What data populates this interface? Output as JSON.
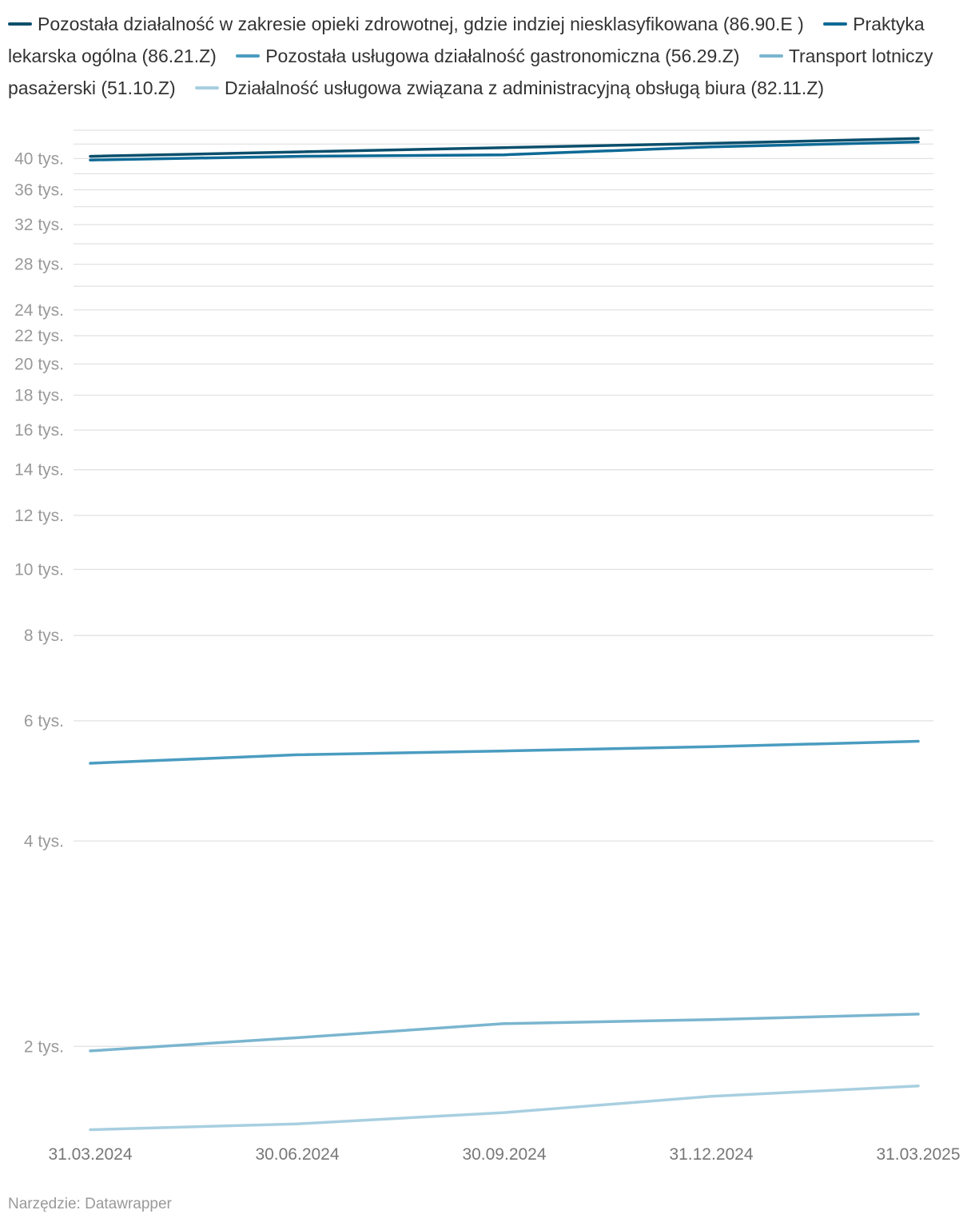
{
  "chart_data": {
    "type": "line",
    "x": [
      "31.03.2024",
      "30.06.2024",
      "30.09.2024",
      "31.12.2024",
      "31.03.2025"
    ],
    "y_scale": "log",
    "ylim": [
      1500,
      44000
    ],
    "y_ticks": [
      {
        "value": 2000,
        "label": "2 tys."
      },
      {
        "value": 4000,
        "label": "4 tys."
      },
      {
        "value": 6000,
        "label": "6 tys."
      },
      {
        "value": 8000,
        "label": "8 tys."
      },
      {
        "value": 10000,
        "label": "10 tys."
      },
      {
        "value": 12000,
        "label": "12 tys."
      },
      {
        "value": 14000,
        "label": "14 tys."
      },
      {
        "value": 16000,
        "label": "16 tys."
      },
      {
        "value": 18000,
        "label": "18 tys."
      },
      {
        "value": 20000,
        "label": "20 tys."
      },
      {
        "value": 22000,
        "label": "22 tys."
      },
      {
        "value": 24000,
        "label": "24 tys."
      },
      {
        "value": 28000,
        "label": "28 tys."
      },
      {
        "value": 32000,
        "label": "32 tys."
      },
      {
        "value": 36000,
        "label": "36 tys."
      },
      {
        "value": 40000,
        "label": "40 tys."
      }
    ],
    "y_minor_gridlines": [
      26000,
      30000,
      34000,
      38000,
      42000,
      44000
    ],
    "grid": true,
    "legend_position": "top",
    "series": [
      {
        "name": "Pozostała działalność w zakresie opieki zdrowotnej, gdzie indziej niesklasyfikowana (86.90.E )",
        "color": "#0b4f6c",
        "values": [
          40300,
          40900,
          41500,
          42100,
          42800
        ]
      },
      {
        "name": "Praktyka lekarska ogólna (86.21.Z)",
        "color": "#0e6a96",
        "values": [
          39800,
          40300,
          40500,
          41600,
          42300
        ]
      },
      {
        "name": "Pozostała usługowa działalność gastronomiczna (56.29.Z)",
        "color": "#4a9cc0",
        "values": [
          5200,
          5350,
          5420,
          5500,
          5600
        ]
      },
      {
        "name": "Transport lotniczy pasażerski (51.10.Z)",
        "color": "#7ab5cf",
        "values": [
          1970,
          2060,
          2160,
          2190,
          2230
        ]
      },
      {
        "name": "Działalność usługowa związana z administracyjną obsługą biura (82.11.Z)",
        "color": "#a8cfe0",
        "values": [
          1510,
          1540,
          1600,
          1690,
          1750
        ]
      }
    ]
  },
  "source": "Narzędzie: Datawrapper"
}
